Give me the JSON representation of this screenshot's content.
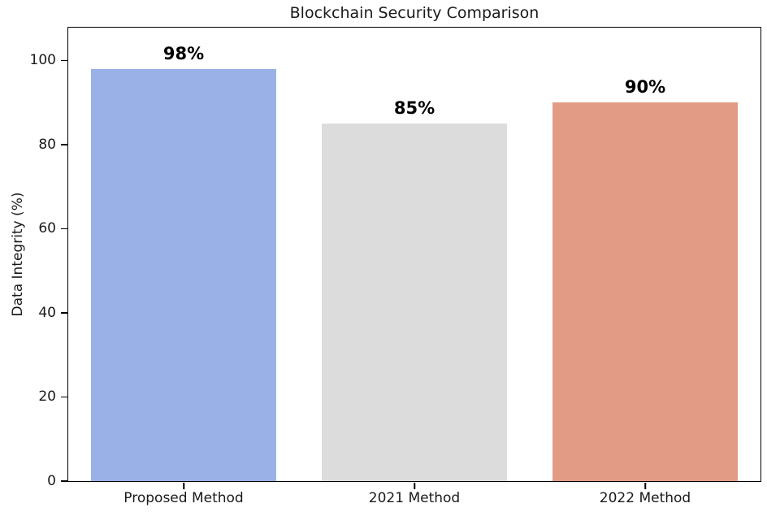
{
  "figure": {
    "background": "#ffffff",
    "axis_color": "#000000",
    "text_color": "#1a1a1a"
  },
  "chart_data": {
    "type": "bar",
    "title": "Blockchain Security Comparison",
    "xlabel": "",
    "ylabel": "Data Integrity (%)",
    "categories": [
      "Proposed Method",
      "2021 Method",
      "2022 Method"
    ],
    "values": [
      98,
      85,
      90
    ],
    "value_labels": [
      "98%",
      "85%",
      "90%"
    ],
    "bar_colors": [
      "#99B1E6",
      "#DCDCDC",
      "#E29C85"
    ],
    "yticks": [
      0,
      20,
      40,
      60,
      80,
      100
    ],
    "ylim": [
      0,
      107.8
    ],
    "bar_width_fraction": 0.8,
    "grid": false,
    "legend_position": "none"
  }
}
